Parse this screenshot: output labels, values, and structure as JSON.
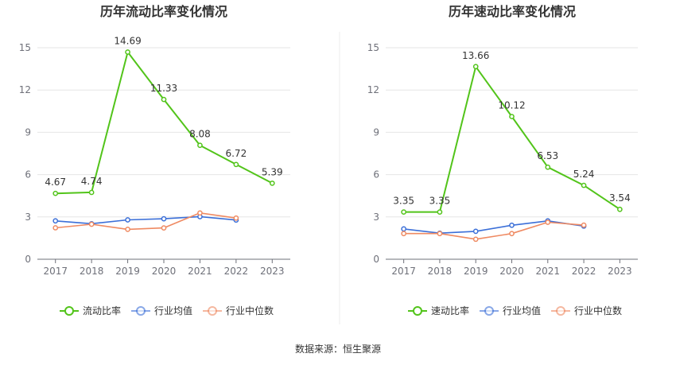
{
  "footer": "数据来源：恒生聚源",
  "legend_labels": [
    "行业均值",
    "行业中位数"
  ],
  "colors": {
    "main": "#52c41a",
    "avg": "#3b6fd8",
    "median": "#ef8a62",
    "grid": "#e6e6e6",
    "axis": "#6e7079"
  },
  "chart_data": [
    {
      "type": "line",
      "title": "历年流动比率变化情况",
      "categories": [
        "2017",
        "2018",
        "2019",
        "2020",
        "2021",
        "2022",
        "2023"
      ],
      "ylim": [
        0,
        15
      ],
      "yticks": [
        0,
        3,
        6,
        9,
        12,
        15
      ],
      "grid": true,
      "legend_position": "bottom",
      "series": [
        {
          "name": "流动比率",
          "values": [
            4.67,
            4.74,
            14.69,
            11.33,
            8.08,
            6.72,
            5.39
          ],
          "labels": [
            "4.67",
            "4.74",
            "14.69",
            "11.33",
            "8.08",
            "6.72",
            "5.39"
          ]
        },
        {
          "name": "行业均值",
          "values": [
            2.72,
            2.52,
            2.79,
            2.87,
            3.02,
            2.78,
            null
          ]
        },
        {
          "name": "行业中位数",
          "values": [
            2.23,
            2.48,
            2.12,
            2.22,
            3.28,
            2.92,
            null
          ]
        }
      ]
    },
    {
      "type": "line",
      "title": "历年速动比率变化情况",
      "categories": [
        "2017",
        "2018",
        "2019",
        "2020",
        "2021",
        "2022",
        "2023"
      ],
      "ylim": [
        0,
        15
      ],
      "yticks": [
        0,
        3,
        6,
        9,
        12,
        15
      ],
      "grid": true,
      "legend_position": "bottom",
      "series": [
        {
          "name": "速动比率",
          "values": [
            3.35,
            3.35,
            13.66,
            10.12,
            6.53,
            5.24,
            3.54
          ],
          "labels": [
            "3.35",
            "3.35",
            "13.66",
            "10.12",
            "6.53",
            "5.24",
            "3.54"
          ]
        },
        {
          "name": "行业均值",
          "values": [
            2.15,
            1.85,
            1.98,
            2.41,
            2.72,
            2.35,
            null
          ]
        },
        {
          "name": "行业中位数",
          "values": [
            1.82,
            1.82,
            1.42,
            1.82,
            2.62,
            2.42,
            null
          ]
        }
      ]
    }
  ]
}
